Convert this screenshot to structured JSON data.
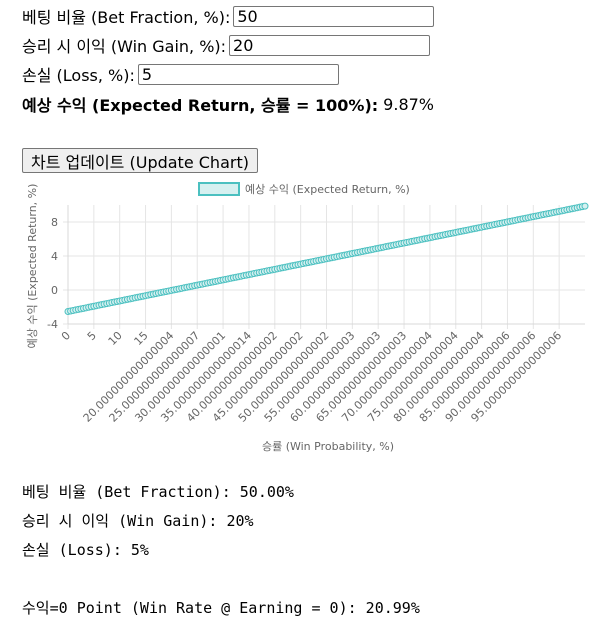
{
  "form": {
    "bet_fraction_label": "베팅 비율 (Bet Fraction, %):",
    "bet_fraction_value": "50",
    "win_gain_label": "승리 시 이익 (Win Gain, %):",
    "win_gain_value": "20",
    "loss_label": "손실 (Loss, %):",
    "loss_value": "5",
    "expected_label": "예상 수익 (Expected Return, 승률 = 100%):",
    "expected_value": "9.87%",
    "update_button": "차트 업데이트 (Update Chart)"
  },
  "chart_data": {
    "type": "line",
    "legend": "예상 수익 (Expected Return, %)",
    "legend_position": "top",
    "xlabel": "승률 (Win Probability, %)",
    "ylabel": "예상 수익 (Expected Return, %)",
    "x_start": 0,
    "x_end": 100,
    "x_step": 0.5,
    "y_start": -2.53,
    "y_end": 9.87,
    "ylim": [
      -4,
      10
    ],
    "yticks": [
      -4,
      0,
      4,
      8
    ],
    "grid": true,
    "line_color": "#4bc0c0",
    "fill_color": "#d6f0f0",
    "xtick_labels": [
      "0",
      "5",
      "10",
      "15",
      "20.000000000000004",
      "25.000000000000007",
      "30.000000000000001",
      "35.000000000000014",
      "40.000000000000002",
      "45.000000000000002",
      "50.000000000000002",
      "55.000000000000003",
      "60.000000000000003",
      "65.000000000000003",
      "70.000000000000004",
      "75.000000000000004",
      "80.000000000000004",
      "85.000000000000006",
      "90.000000000000006",
      "95.000000000000006"
    ]
  },
  "summary": {
    "bet_fraction": "베팅 비율 (Bet Fraction): 50.00%",
    "win_gain": "승리 시 이익 (Win Gain): 20%",
    "loss": "손실 (Loss): 5%",
    "breakeven": "수익=0 Point (Win Rate @ Earning = 0): 20.99%"
  }
}
